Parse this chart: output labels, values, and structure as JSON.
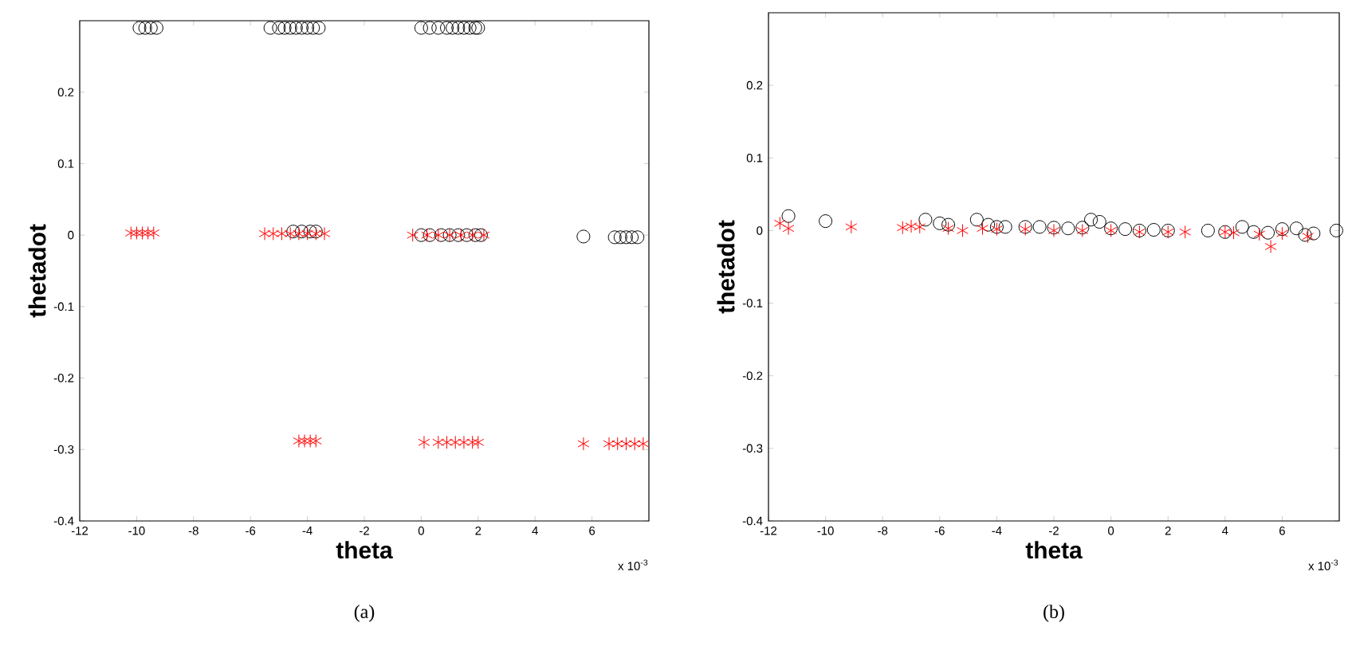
{
  "chart_data": [
    {
      "type": "scatter",
      "xlabel": "theta",
      "ylabel": "thetadot",
      "xlim": [
        -12,
        8
      ],
      "ylim": [
        -0.4,
        0.3
      ],
      "xticks": [
        -12,
        -10,
        -8,
        -6,
        -4,
        -2,
        0,
        2,
        4,
        6
      ],
      "yticks": [
        -0.4,
        -0.3,
        -0.2,
        -0.1,
        0,
        0.1,
        0.2
      ],
      "annotations": [
        "x 10$^{-3}$",
        "(a)"
      ],
      "series": [
        {
          "color": "#000000",
          "marker": "circle",
          "x": [
            -9.9,
            -9.7,
            -9.5,
            -9.3,
            -5.3,
            -5.0,
            -4.8,
            -4.6,
            -4.4,
            -4.2,
            -4.0,
            -3.8,
            -3.6,
            0.0,
            0.3,
            0.6,
            0.9,
            1.1,
            1.3,
            1.5,
            1.7,
            1.9,
            2.0,
            -4.5,
            -4.2,
            -3.9,
            -3.7,
            0.0,
            0.3,
            0.7,
            1.0,
            1.3,
            1.6,
            1.9,
            2.1,
            5.7,
            6.8,
            7.0,
            7.2,
            7.4,
            7.6
          ],
          "values": [
            0.29,
            0.29,
            0.29,
            0.29,
            0.29,
            0.29,
            0.29,
            0.29,
            0.29,
            0.29,
            0.29,
            0.29,
            0.29,
            0.29,
            0.29,
            0.29,
            0.29,
            0.29,
            0.29,
            0.29,
            0.29,
            0.29,
            0.29,
            0.005,
            0.005,
            0.005,
            0.005,
            0.0,
            0.0,
            0.0,
            0.0,
            0.0,
            0.0,
            0.0,
            0.0,
            -0.002,
            -0.003,
            -0.003,
            -0.003,
            -0.003,
            -0.003
          ]
        },
        {
          "color": "#ff0000",
          "marker": "cross",
          "x": [
            -10.2,
            -10.0,
            -9.8,
            -9.6,
            -9.4,
            -5.5,
            -5.2,
            -4.9,
            -4.6,
            -4.3,
            -4.0,
            -3.7,
            -3.4,
            -0.3,
            0.2,
            0.6,
            1.0,
            1.4,
            1.8,
            2.2,
            -4.3,
            -4.1,
            -3.9,
            -3.7,
            0.1,
            0.6,
            0.9,
            1.2,
            1.5,
            1.8,
            2.0,
            5.7,
            6.6,
            6.9,
            7.2,
            7.5,
            7.8
          ],
          "values": [
            0.003,
            0.003,
            0.003,
            0.003,
            0.003,
            0.002,
            0.002,
            0.002,
            0.002,
            0.002,
            0.002,
            0.002,
            0.002,
            0.0,
            0.0,
            0.0,
            0.0,
            0.0,
            0.0,
            0.0,
            -0.288,
            -0.288,
            -0.288,
            -0.288,
            -0.29,
            -0.29,
            -0.29,
            -0.29,
            -0.29,
            -0.29,
            -0.29,
            -0.292,
            -0.292,
            -0.292,
            -0.292,
            -0.292,
            -0.292
          ]
        }
      ]
    },
    {
      "type": "scatter",
      "xlabel": "theta",
      "ylabel": "thetadot",
      "xlim": [
        -12,
        8
      ],
      "ylim": [
        -0.4,
        0.3
      ],
      "xticks": [
        -12,
        -10,
        -8,
        -6,
        -4,
        -2,
        0,
        2,
        4,
        6
      ],
      "yticks": [
        -0.4,
        -0.3,
        -0.2,
        -0.1,
        0,
        0.1,
        0.2
      ],
      "annotations": [
        "x 10$^{-3}$",
        "(b)"
      ],
      "series": [
        {
          "color": "#000000",
          "marker": "circle",
          "x": [
            -11.3,
            -10.0,
            -6.5,
            -6.0,
            -5.7,
            -4.7,
            -4.3,
            -4.0,
            -3.7,
            -3.0,
            -2.5,
            -2.0,
            -1.5,
            -1.0,
            -0.7,
            -0.4,
            0.0,
            0.5,
            1.0,
            1.5,
            2.0,
            3.4,
            4.0,
            4.6,
            5.0,
            5.5,
            6.0,
            6.5,
            6.8,
            7.1,
            7.9
          ],
          "values": [
            0.02,
            0.013,
            0.015,
            0.01,
            0.008,
            0.015,
            0.008,
            0.005,
            0.005,
            0.005,
            0.005,
            0.004,
            0.003,
            0.004,
            0.015,
            0.012,
            0.003,
            0.002,
            0.0,
            0.001,
            0.0,
            0.0,
            -0.002,
            0.005,
            -0.002,
            -0.003,
            0.002,
            0.003,
            -0.006,
            -0.004,
            0.0
          ]
        },
        {
          "color": "#ff0000",
          "marker": "cross",
          "x": [
            -11.6,
            -11.3,
            -9.1,
            -7.3,
            -7.0,
            -6.7,
            -5.7,
            -5.2,
            -4.5,
            -4.0,
            -3.0,
            -2.0,
            -1.0,
            0.0,
            1.0,
            2.0,
            2.6,
            4.0,
            4.3,
            5.2,
            5.6,
            6.0,
            6.9
          ],
          "values": [
            0.01,
            0.003,
            0.005,
            0.004,
            0.006,
            0.005,
            0.003,
            0.0,
            0.003,
            0.002,
            0.002,
            0.0,
            0.0,
            0.0,
            -0.002,
            -0.002,
            -0.002,
            -0.002,
            -0.003,
            -0.005,
            -0.022,
            -0.004,
            -0.008
          ]
        }
      ]
    }
  ]
}
